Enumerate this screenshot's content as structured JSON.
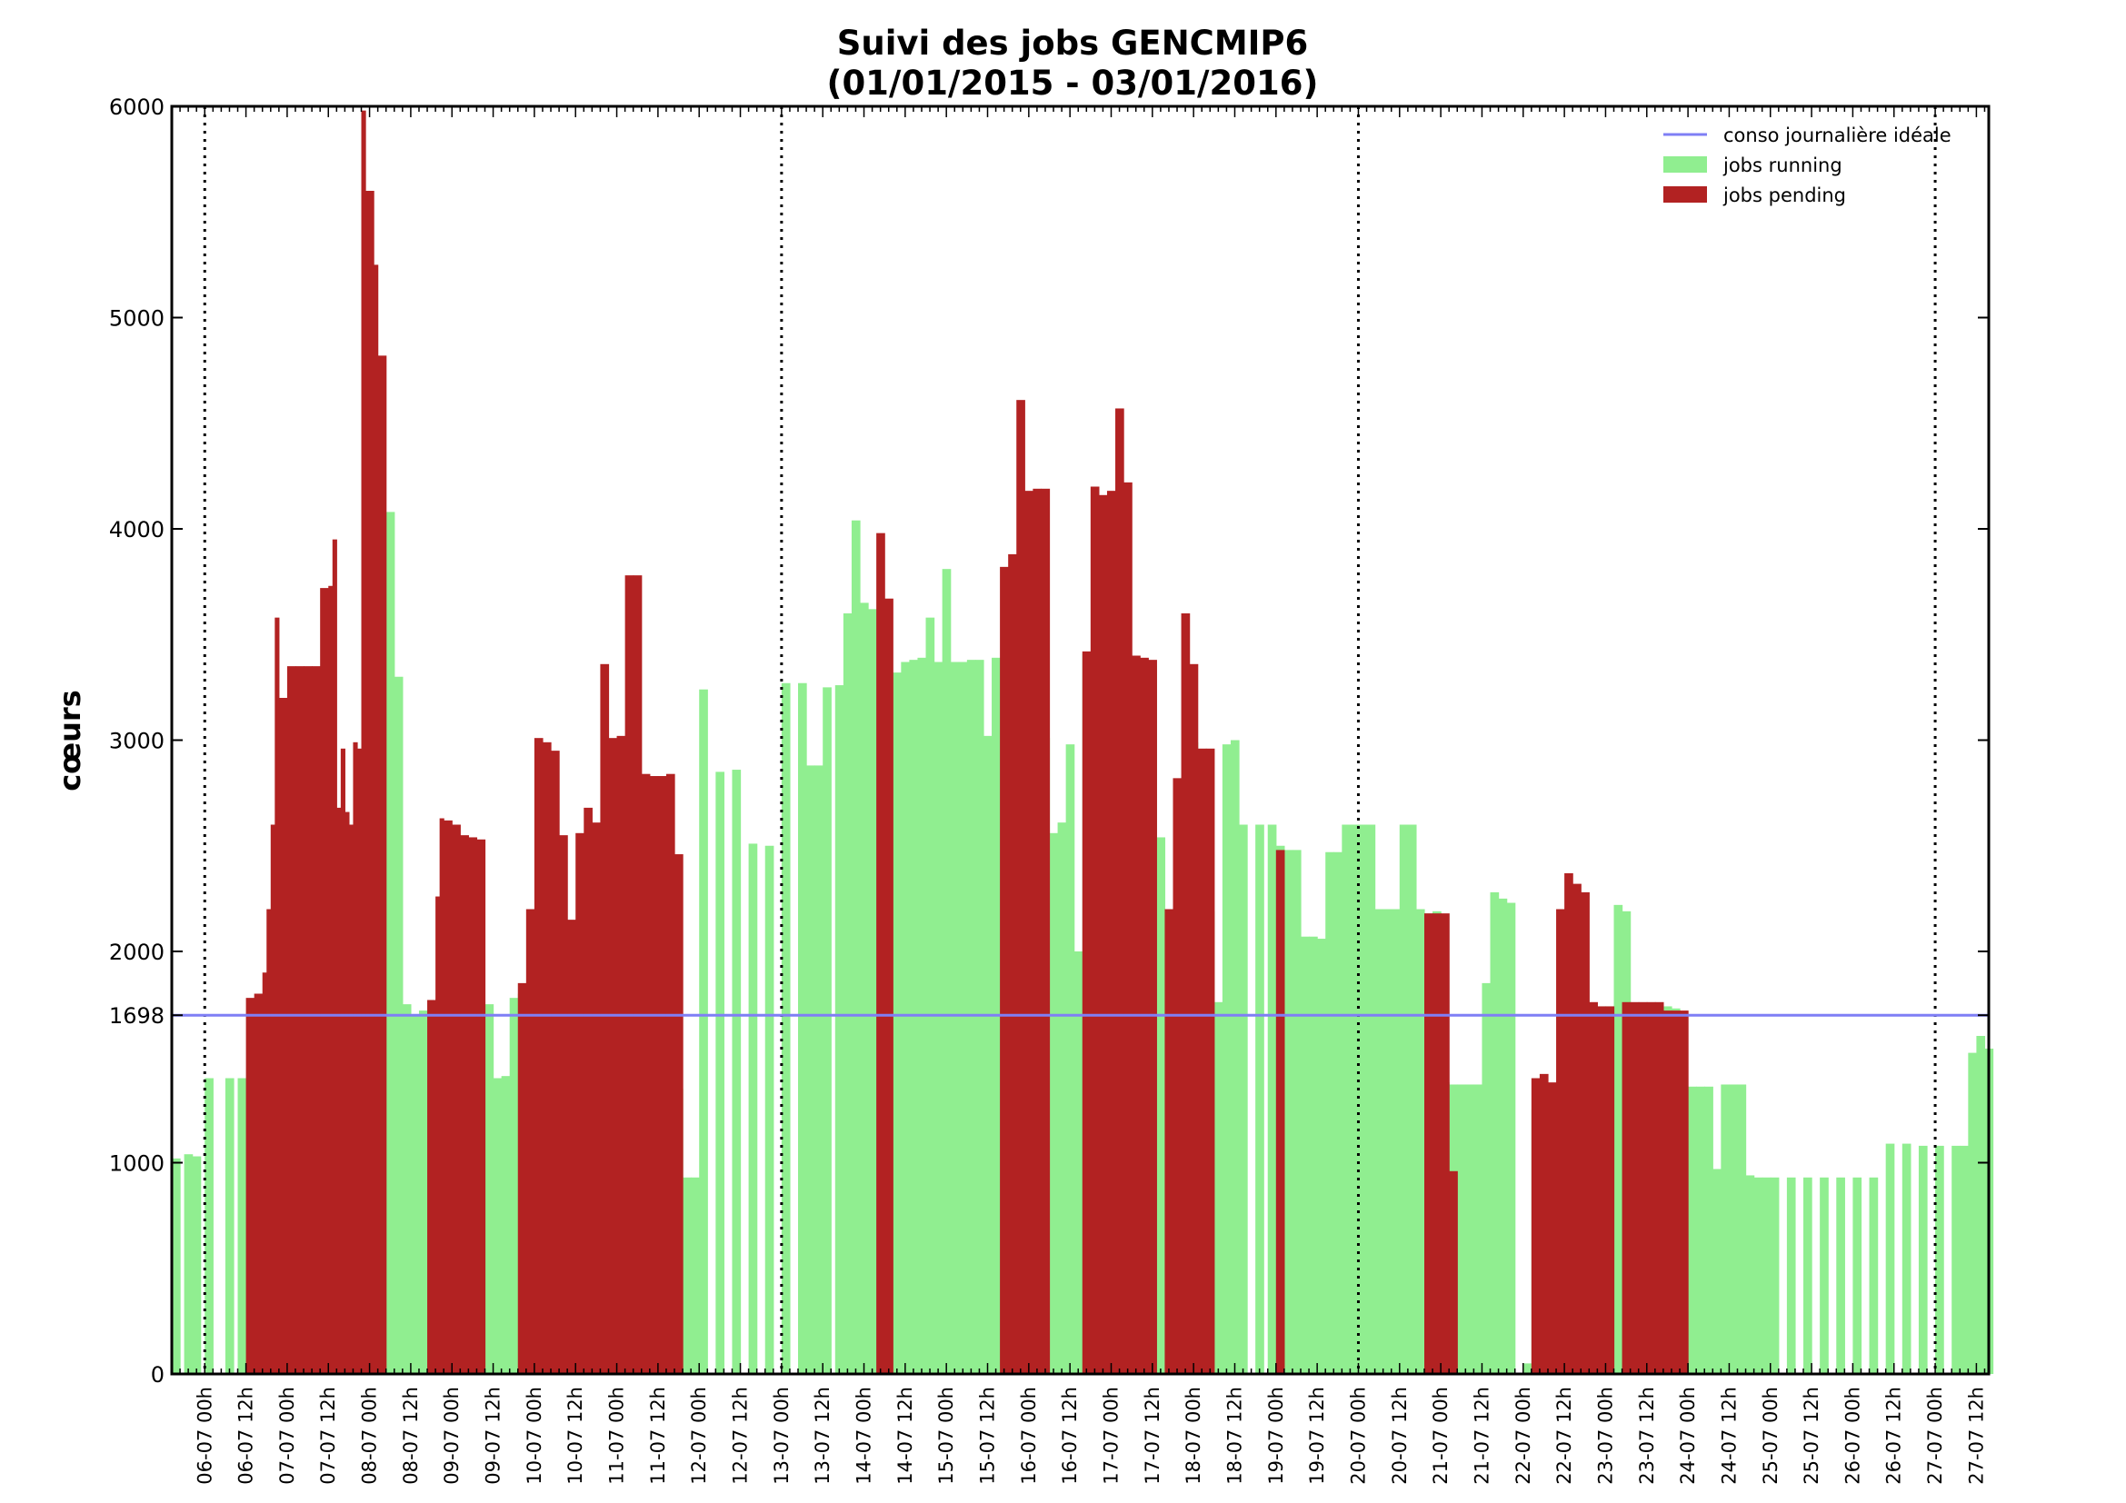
{
  "chart_data": {
    "type": "bar",
    "title": "Suivi des jobs GENCMIP6",
    "subtitle": "(01/01/2015 - 03/01/2016)",
    "ylabel": "cœurs",
    "xlabel": "",
    "ylim": [
      0,
      6000
    ],
    "xlim": [
      -0.8,
      43.3
    ],
    "yticks": [
      0,
      1000,
      1698,
      2000,
      3000,
      4000,
      5000,
      6000
    ],
    "ytick_labels": [
      "0",
      "1000",
      "1698",
      "2000",
      "3000",
      "4000",
      "5000",
      "6000"
    ],
    "xtick_labels": [
      "06-07 00h",
      "06-07 12h",
      "07-07 00h",
      "07-07 12h",
      "08-07 00h",
      "08-07 12h",
      "09-07 00h",
      "09-07 12h",
      "10-07 00h",
      "10-07 12h",
      "11-07 00h",
      "11-07 12h",
      "12-07 00h",
      "12-07 12h",
      "13-07 00h",
      "13-07 12h",
      "14-07 00h",
      "14-07 12h",
      "15-07 00h",
      "15-07 12h",
      "16-07 00h",
      "16-07 12h",
      "17-07 00h",
      "17-07 12h",
      "18-07 00h",
      "18-07 12h",
      "19-07 00h",
      "19-07 12h",
      "20-07 00h",
      "20-07 12h",
      "21-07 00h",
      "21-07 12h",
      "22-07 00h",
      "22-07 12h",
      "23-07 00h",
      "23-07 12h",
      "24-07 00h",
      "24-07 12h",
      "25-07 00h",
      "25-07 12h",
      "26-07 00h",
      "26-07 12h",
      "27-07 00h",
      "27-07 12h"
    ],
    "day_separators": [
      "13-07 00h",
      "20-07 00h",
      "27-07 00h"
    ],
    "reference_line": {
      "name": "conso journalière idéale",
      "value": 1698,
      "color": "#7f7ff5"
    },
    "legend": {
      "placement": "top-right"
    },
    "grid": false,
    "series": [
      {
        "name": "jobs running",
        "color": "#90ee90",
        "points": [
          [
            -0.8,
            1020
          ],
          [
            -0.5,
            1040
          ],
          [
            -0.3,
            1030
          ],
          [
            0,
            1400
          ],
          [
            0.5,
            1400
          ],
          [
            0.8,
            1400
          ],
          [
            1,
            1050
          ],
          [
            1.2,
            1100
          ],
          [
            1.4,
            1150
          ],
          [
            1.6,
            1400
          ],
          [
            1.8,
            1000
          ],
          [
            2,
            600
          ],
          [
            2.2,
            200
          ],
          [
            2.4,
            150
          ],
          [
            2.6,
            80
          ],
          [
            2.8,
            300
          ],
          [
            3,
            450
          ],
          [
            3.2,
            380
          ],
          [
            3.4,
            380
          ],
          [
            3.6,
            380
          ],
          [
            3.8,
            60
          ],
          [
            4,
            80
          ],
          [
            4.2,
            900
          ],
          [
            4.3,
            2950
          ],
          [
            4.4,
            4080
          ],
          [
            4.6,
            3300
          ],
          [
            4.8,
            1750
          ],
          [
            5,
            1700
          ],
          [
            5.2,
            1720
          ],
          [
            5.4,
            1400
          ],
          [
            5.6,
            1550
          ],
          [
            5.8,
            1300
          ],
          [
            6,
            1100
          ],
          [
            6.2,
            1000
          ],
          [
            6.4,
            1000
          ],
          [
            6.6,
            460
          ],
          [
            6.8,
            1750
          ],
          [
            7,
            1400
          ],
          [
            7.2,
            1410
          ],
          [
            7.4,
            1780
          ],
          [
            7.6,
            1800
          ],
          [
            7.8,
            1400
          ],
          [
            8,
            1020
          ],
          [
            8.2,
            900
          ],
          [
            8.4,
            400
          ],
          [
            8.6,
            10
          ],
          [
            8.8,
            200
          ],
          [
            9,
            100
          ],
          [
            9.2,
            20
          ],
          [
            9.4,
            60
          ],
          [
            9.6,
            60
          ],
          [
            9.8,
            3000
          ],
          [
            10,
            1350
          ],
          [
            10.2,
            950
          ],
          [
            10.4,
            920
          ],
          [
            10.6,
            920
          ],
          [
            10.8,
            2080
          ],
          [
            11,
            2080
          ],
          [
            11.2,
            1700
          ],
          [
            11.4,
            1350
          ],
          [
            11.6,
            930
          ],
          [
            11.8,
            930
          ],
          [
            12,
            3240
          ],
          [
            12.4,
            2850
          ],
          [
            12.8,
            2860
          ],
          [
            13.2,
            2510
          ],
          [
            13.6,
            2500
          ],
          [
            14,
            3270
          ],
          [
            14.4,
            3270
          ],
          [
            14.6,
            2880
          ],
          [
            14.8,
            2880
          ],
          [
            15,
            3250
          ],
          [
            15.3,
            3260
          ],
          [
            15.5,
            3600
          ],
          [
            15.7,
            4040
          ],
          [
            15.9,
            3650
          ],
          [
            16.1,
            3620
          ],
          [
            16.3,
            2900
          ],
          [
            16.5,
            3310
          ],
          [
            16.7,
            3320
          ],
          [
            16.9,
            3370
          ],
          [
            17.1,
            3380
          ],
          [
            17.3,
            3390
          ],
          [
            17.5,
            3580
          ],
          [
            17.7,
            3370
          ],
          [
            17.9,
            3810
          ],
          [
            18.1,
            3370
          ],
          [
            18.3,
            3370
          ],
          [
            18.5,
            3380
          ],
          [
            18.7,
            3380
          ],
          [
            18.9,
            3020
          ],
          [
            19.1,
            3390
          ],
          [
            19.3,
            1900
          ],
          [
            19.5,
            2560
          ],
          [
            19.7,
            2580
          ],
          [
            19.9,
            2600
          ],
          [
            20.1,
            3410
          ],
          [
            20.3,
            3010
          ],
          [
            20.5,
            2560
          ],
          [
            20.7,
            2610
          ],
          [
            20.9,
            2980
          ],
          [
            21.1,
            2000
          ],
          [
            21.3,
            3410
          ],
          [
            21.5,
            2580
          ],
          [
            21.7,
            1680
          ],
          [
            21.9,
            1350
          ],
          [
            22.1,
            2640
          ],
          [
            22.3,
            2640
          ],
          [
            22.5,
            1830
          ],
          [
            22.7,
            3360
          ],
          [
            22.9,
            3350
          ],
          [
            23.1,
            2540
          ],
          [
            23.3,
            1600
          ],
          [
            23.5,
            1200
          ],
          [
            23.7,
            2000
          ],
          [
            23.9,
            2990
          ],
          [
            24.1,
            2190
          ],
          [
            24.3,
            2190
          ],
          [
            24.5,
            1760
          ],
          [
            24.7,
            2980
          ],
          [
            24.9,
            3000
          ],
          [
            25.1,
            2600
          ],
          [
            25.5,
            2600
          ],
          [
            25.8,
            2600
          ],
          [
            26,
            2500
          ],
          [
            26.2,
            2480
          ],
          [
            26.4,
            2480
          ],
          [
            26.6,
            2070
          ],
          [
            26.8,
            2070
          ],
          [
            27,
            2060
          ],
          [
            27.2,
            2470
          ],
          [
            27.4,
            2470
          ],
          [
            27.6,
            2600
          ],
          [
            27.8,
            2600
          ],
          [
            28,
            2600
          ],
          [
            28.2,
            2600
          ],
          [
            28.4,
            2200
          ],
          [
            28.6,
            2200
          ],
          [
            28.8,
            2200
          ],
          [
            29,
            2600
          ],
          [
            29.2,
            2600
          ],
          [
            29.4,
            2200
          ],
          [
            29.6,
            2180
          ],
          [
            29.8,
            2190
          ],
          [
            30,
            1380
          ],
          [
            30.2,
            1370
          ],
          [
            30.4,
            1370
          ],
          [
            30.6,
            1370
          ],
          [
            30.8,
            1370
          ],
          [
            31,
            1850
          ],
          [
            31.2,
            2280
          ],
          [
            31.4,
            2250
          ],
          [
            31.6,
            2230
          ],
          [
            31.8,
            0
          ],
          [
            32,
            50
          ],
          [
            32.2,
            1250
          ],
          [
            32.4,
            1250
          ],
          [
            32.6,
            1250
          ],
          [
            32.8,
            1250
          ],
          [
            33,
            1900
          ],
          [
            33.2,
            1800
          ],
          [
            33.4,
            1750
          ],
          [
            33.6,
            1740
          ],
          [
            33.8,
            1740
          ],
          [
            34,
            1740
          ],
          [
            34.2,
            2220
          ],
          [
            34.4,
            2190
          ],
          [
            34.6,
            1750
          ],
          [
            34.8,
            1750
          ],
          [
            35,
            1750
          ],
          [
            35.2,
            1750
          ],
          [
            35.4,
            1740
          ],
          [
            35.6,
            1730
          ],
          [
            35.8,
            1360
          ],
          [
            36,
            1360
          ],
          [
            36.2,
            1360
          ],
          [
            36.4,
            1360
          ],
          [
            36.6,
            970
          ],
          [
            36.8,
            1370
          ],
          [
            37,
            1370
          ],
          [
            37.2,
            1370
          ],
          [
            37.4,
            940
          ],
          [
            37.6,
            930
          ],
          [
            37.8,
            930
          ],
          [
            38,
            930
          ],
          [
            38.4,
            930
          ],
          [
            38.8,
            930
          ],
          [
            39.2,
            930
          ],
          [
            39.6,
            930
          ],
          [
            40,
            930
          ],
          [
            40.4,
            930
          ],
          [
            40.8,
            1090
          ],
          [
            41.2,
            1090
          ],
          [
            41.6,
            1080
          ],
          [
            42,
            1080
          ],
          [
            42.4,
            1080
          ],
          [
            42.6,
            1080
          ],
          [
            42.8,
            1520
          ],
          [
            43,
            1600
          ],
          [
            43.2,
            1540
          ]
        ]
      },
      {
        "name": "jobs pending",
        "color": "#b22222",
        "points": [
          [
            1,
            1780
          ],
          [
            1.2,
            1800
          ],
          [
            1.4,
            1900
          ],
          [
            1.5,
            2200
          ],
          [
            1.6,
            2600
          ],
          [
            1.7,
            3580
          ],
          [
            1.8,
            3200
          ],
          [
            2,
            3350
          ],
          [
            2.2,
            3350
          ],
          [
            2.4,
            3350
          ],
          [
            2.6,
            3350
          ],
          [
            2.8,
            3720
          ],
          [
            3,
            3730
          ],
          [
            3.1,
            3950
          ],
          [
            3.2,
            2680
          ],
          [
            3.3,
            2960
          ],
          [
            3.4,
            2660
          ],
          [
            3.5,
            2600
          ],
          [
            3.6,
            2990
          ],
          [
            3.7,
            2960
          ],
          [
            3.8,
            5980
          ],
          [
            3.9,
            5600
          ],
          [
            4,
            5600
          ],
          [
            4.1,
            5250
          ],
          [
            4.2,
            4820
          ],
          [
            5.4,
            1770
          ],
          [
            5.6,
            2260
          ],
          [
            5.7,
            2630
          ],
          [
            5.8,
            2620
          ],
          [
            6,
            2600
          ],
          [
            6.2,
            2550
          ],
          [
            6.4,
            2540
          ],
          [
            6.6,
            2530
          ],
          [
            7.6,
            1850
          ],
          [
            7.8,
            2200
          ],
          [
            8,
            3010
          ],
          [
            8.2,
            2990
          ],
          [
            8.4,
            2950
          ],
          [
            8.6,
            2550
          ],
          [
            8.8,
            2150
          ],
          [
            9,
            2560
          ],
          [
            9.2,
            2680
          ],
          [
            9.4,
            2610
          ],
          [
            9.6,
            3360
          ],
          [
            9.8,
            3010
          ],
          [
            10,
            3020
          ],
          [
            10.2,
            3780
          ],
          [
            10.4,
            3780
          ],
          [
            10.6,
            2840
          ],
          [
            10.8,
            2830
          ],
          [
            11,
            2830
          ],
          [
            11.2,
            2840
          ],
          [
            11.4,
            2460
          ],
          [
            16.3,
            3980
          ],
          [
            16.5,
            3670
          ],
          [
            19.3,
            3820
          ],
          [
            19.5,
            3880
          ],
          [
            19.7,
            4610
          ],
          [
            19.9,
            4180
          ],
          [
            20.1,
            4190
          ],
          [
            20.3,
            4190
          ],
          [
            21.3,
            3420
          ],
          [
            21.5,
            4200
          ],
          [
            21.7,
            4160
          ],
          [
            21.9,
            4180
          ],
          [
            22.1,
            4570
          ],
          [
            22.3,
            4220
          ],
          [
            22.5,
            3400
          ],
          [
            22.7,
            3390
          ],
          [
            22.9,
            3380
          ],
          [
            23.3,
            2200
          ],
          [
            23.5,
            2820
          ],
          [
            23.7,
            3600
          ],
          [
            23.9,
            3360
          ],
          [
            24.1,
            2960
          ],
          [
            24.3,
            2960
          ],
          [
            26,
            2480
          ],
          [
            29.6,
            2180
          ],
          [
            29.8,
            2180
          ],
          [
            30,
            2180
          ],
          [
            30.2,
            960
          ],
          [
            32.2,
            1400
          ],
          [
            32.4,
            1420
          ],
          [
            32.6,
            1380
          ],
          [
            32.8,
            2200
          ],
          [
            33,
            2370
          ],
          [
            33.2,
            2320
          ],
          [
            33.4,
            2280
          ],
          [
            33.6,
            1760
          ],
          [
            33.8,
            1740
          ],
          [
            34,
            1740
          ],
          [
            34.4,
            1760
          ],
          [
            34.6,
            1760
          ],
          [
            34.8,
            1760
          ],
          [
            35,
            1760
          ],
          [
            35.2,
            1760
          ],
          [
            35.4,
            1720
          ],
          [
            35.6,
            1720
          ],
          [
            35.8,
            1720
          ]
        ]
      }
    ]
  }
}
